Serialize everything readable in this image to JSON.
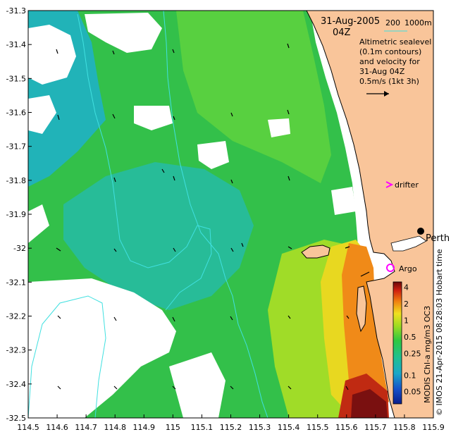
{
  "map": {
    "x_ticks": [
      "114.5",
      "114.6",
      "114.7",
      "114.8",
      "114.9",
      "115",
      "115.1",
      "115.2",
      "115.3",
      "115.4",
      "115.5",
      "115.6",
      "115.7",
      "115.8",
      "115.9"
    ],
    "y_ticks": [
      "-31.3",
      "-31.4",
      "-31.5",
      "-31.6",
      "-31.7",
      "-31.8",
      "-31.9",
      "-32",
      "-32.1",
      "-32.2",
      "-32.3",
      "-32.4",
      "-32.5"
    ],
    "x_range": [
      114.5,
      115.9
    ],
    "y_range": [
      -32.5,
      -31.3
    ]
  },
  "annotations": {
    "date": "31-Aug-2005",
    "time": "04Z",
    "depth_200": "200",
    "depth_1000": "1000m",
    "sealevel_lines": [
      "Altimetric sealevel",
      "(0.1m contours)",
      "and velocity for",
      "31-Aug 04Z",
      "0.5m/s (1kt 3h)"
    ],
    "drifter_label": "drifter",
    "perth_label": "Perth",
    "argo_label": "Argo"
  },
  "colorbar": {
    "ticks": [
      "4",
      "2",
      "1",
      "0.5",
      "0.25",
      "0.1",
      "0.05"
    ],
    "side_label": "MODIS Chl-a mg/m3 OC3",
    "credit": "© IMOS 21-Apr-2015 08:28:03 Hobart time"
  },
  "colors": {
    "land": "#f9c59a",
    "contour": "#40e0e0",
    "low_chl": "#1ca8b8",
    "mid_chl": "#2ec84a",
    "high_chl": "#c8e020",
    "peak_chl": "#7a1010",
    "marker_magenta": "#ff00ff"
  }
}
